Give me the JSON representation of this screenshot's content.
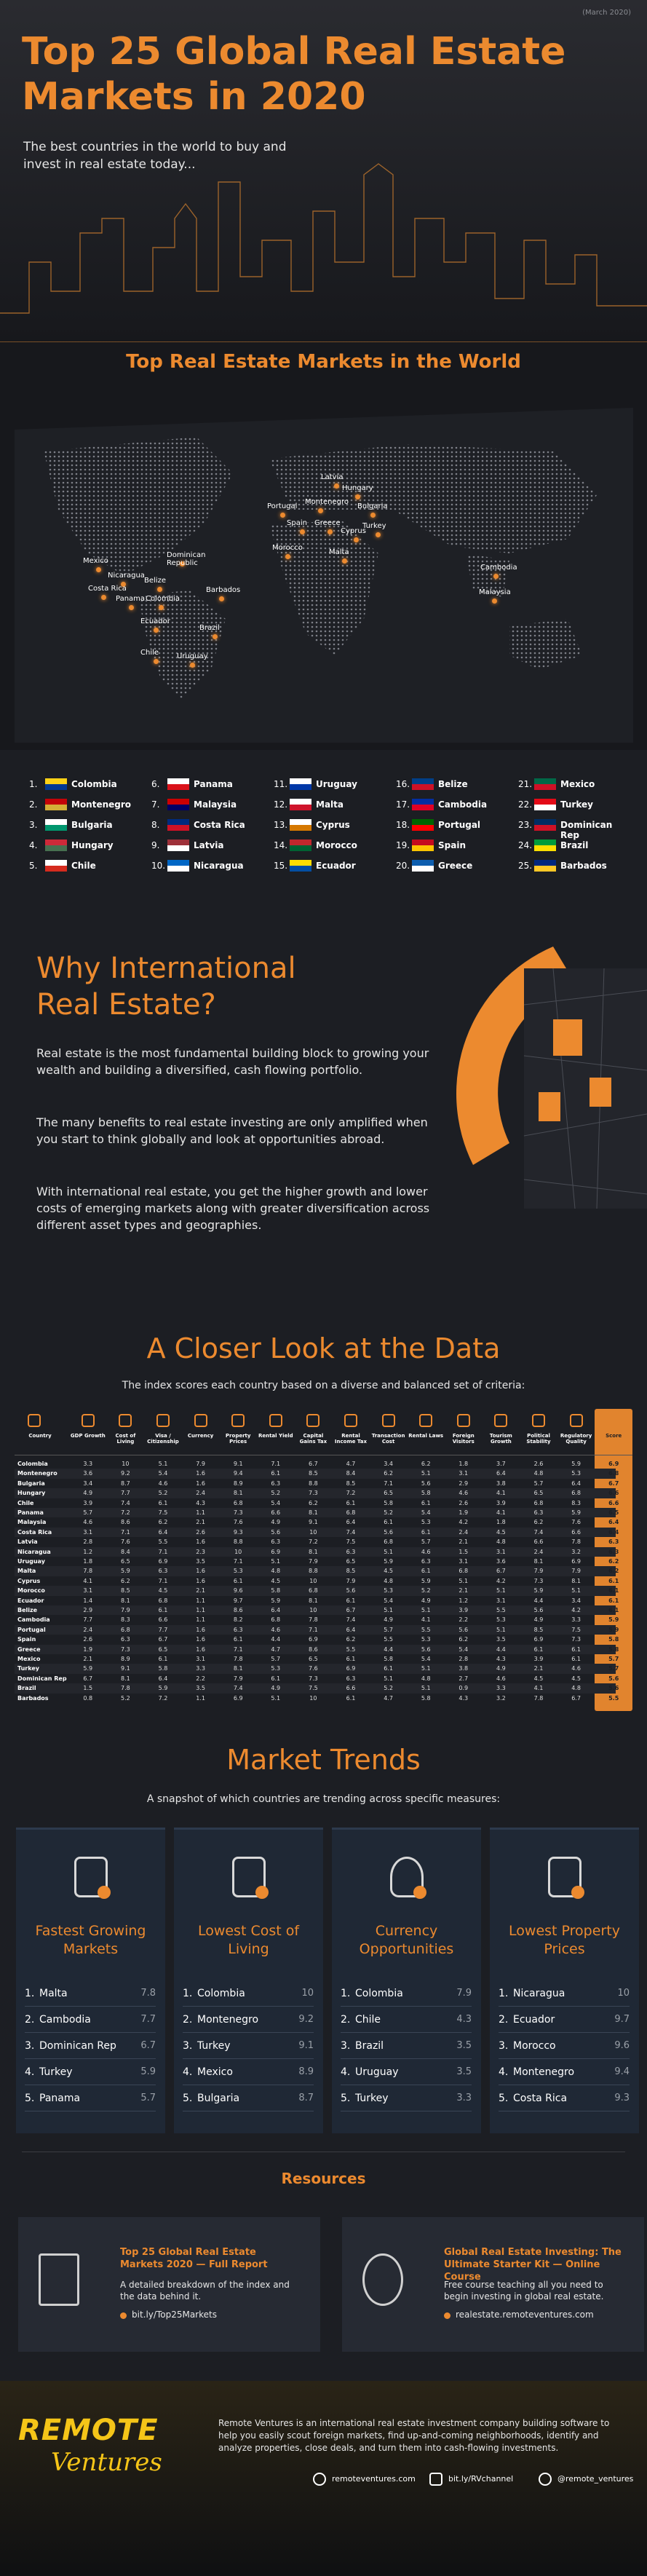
{
  "header": {
    "date": "(March 2020)",
    "title": "Top 25 Global Real Estate Markets in 2020",
    "subtitle": "The best countries in the world to buy and invest in real estate today..."
  },
  "map": {
    "title": "Top Real Estate Markets in the World",
    "labels": [
      "Latvia",
      "Hungary",
      "Portugal",
      "Montenegro",
      "Bulgaria",
      "Spain",
      "Greece",
      "Cyprus",
      "Turkey",
      "Morocco",
      "Malta",
      "Mexico",
      "Dominican Republic",
      "Nicaragua",
      "Belize",
      "Costa Rica",
      "Panama",
      "Colombia",
      "Barbados",
      "Ecuador",
      "Brazil",
      "Chile",
      "Uruguay",
      "Cambodia",
      "Malaysia"
    ]
  },
  "ranking": [
    {
      "rank": "1.",
      "country": "Colombia"
    },
    {
      "rank": "2.",
      "country": "Montenegro"
    },
    {
      "rank": "3.",
      "country": "Bulgaria"
    },
    {
      "rank": "4.",
      "country": "Hungary"
    },
    {
      "rank": "5.",
      "country": "Chile"
    },
    {
      "rank": "6.",
      "country": "Panama"
    },
    {
      "rank": "7.",
      "country": "Malaysia"
    },
    {
      "rank": "8.",
      "country": "Costa Rica"
    },
    {
      "rank": "9.",
      "country": "Latvia"
    },
    {
      "rank": "10.",
      "country": "Nicaragua"
    },
    {
      "rank": "11.",
      "country": "Uruguay"
    },
    {
      "rank": "12.",
      "country": "Malta"
    },
    {
      "rank": "13.",
      "country": "Cyprus"
    },
    {
      "rank": "14.",
      "country": "Morocco"
    },
    {
      "rank": "15.",
      "country": "Ecuador"
    },
    {
      "rank": "16.",
      "country": "Belize"
    },
    {
      "rank": "17.",
      "country": "Cambodia"
    },
    {
      "rank": "18.",
      "country": "Portugal"
    },
    {
      "rank": "19.",
      "country": "Spain"
    },
    {
      "rank": "20.",
      "country": "Greece"
    },
    {
      "rank": "21.",
      "country": "Mexico"
    },
    {
      "rank": "22.",
      "country": "Turkey"
    },
    {
      "rank": "23.",
      "country": "Dominican Rep"
    },
    {
      "rank": "24.",
      "country": "Brazil"
    },
    {
      "rank": "25.",
      "country": "Barbados"
    }
  ],
  "why": {
    "title": "Why International Real Estate?",
    "paragraphs": [
      "Real estate is the most fundamental building block to growing your wealth and building a diversified, cash flowing portfolio.",
      "The many benefits to real estate investing are only amplified when you start to think globally and look at opportunities abroad.",
      "With international real estate, you get the higher growth and lower costs of emerging markets along with greater diversification across different asset types and geographies."
    ]
  },
  "data_table": {
    "title": "A Closer Look at the Data",
    "subtitle": "The index scores each country based on a diverse and balanced set of criteria:",
    "columns": [
      "Country",
      "GDP Growth",
      "Cost of Living",
      "Visa / Citizenship",
      "Currency",
      "Property Prices",
      "Rental Yield",
      "Capital Gains Tax",
      "Rental Income Tax",
      "Transaction Cost",
      "Rental Laws",
      "Foreign Visitors",
      "Tourism Growth",
      "Political Stability",
      "Regulatory Quality",
      "Score"
    ],
    "rows": [
      {
        "country": "Colombia",
        "cells": [
          "3.3",
          "10",
          "5.1",
          "7.9",
          "9.1",
          "7.1",
          "6.7",
          "4.7",
          "3.4",
          "6.2",
          "1.8",
          "3.7",
          "2.6",
          "5.9",
          "6.9"
        ]
      },
      {
        "country": "Montenegro",
        "cells": [
          "3.6",
          "9.2",
          "5.4",
          "1.6",
          "9.4",
          "6.1",
          "8.5",
          "8.4",
          "6.2",
          "5.1",
          "3.1",
          "6.4",
          "4.8",
          "5.3",
          "6.8"
        ]
      },
      {
        "country": "Bulgaria",
        "cells": [
          "3.4",
          "8.7",
          "4.6",
          "1.6",
          "8.9",
          "6.3",
          "8.8",
          "8.5",
          "7.1",
          "5.6",
          "2.9",
          "3.8",
          "5.7",
          "6.4",
          "6.7"
        ]
      },
      {
        "country": "Hungary",
        "cells": [
          "4.9",
          "7.7",
          "5.2",
          "2.4",
          "8.1",
          "5.2",
          "7.3",
          "7.2",
          "6.5",
          "5.8",
          "4.6",
          "4.1",
          "6.5",
          "6.8",
          "6.6"
        ]
      },
      {
        "country": "Chile",
        "cells": [
          "3.9",
          "7.4",
          "6.1",
          "4.3",
          "6.8",
          "5.4",
          "6.2",
          "6.1",
          "5.8",
          "6.1",
          "2.6",
          "3.9",
          "6.8",
          "8.3",
          "6.6"
        ]
      },
      {
        "country": "Panama",
        "cells": [
          "5.7",
          "7.2",
          "7.5",
          "1.1",
          "7.3",
          "6.6",
          "8.1",
          "6.8",
          "5.2",
          "5.4",
          "1.9",
          "4.1",
          "6.3",
          "5.9",
          "6.5"
        ]
      },
      {
        "country": "Malaysia",
        "cells": [
          "4.6",
          "8.6",
          "6.2",
          "2.1",
          "7.6",
          "4.9",
          "9.1",
          "6.4",
          "6.1",
          "5.3",
          "4.2",
          "1.8",
          "6.2",
          "7.6",
          "6.4"
        ]
      },
      {
        "country": "Costa Rica",
        "cells": [
          "3.1",
          "7.1",
          "6.4",
          "2.6",
          "9.3",
          "5.6",
          "10",
          "7.4",
          "5.6",
          "6.1",
          "2.4",
          "4.5",
          "7.4",
          "6.6",
          "6.4"
        ]
      },
      {
        "country": "Latvia",
        "cells": [
          "2.8",
          "7.6",
          "5.5",
          "1.6",
          "8.8",
          "6.3",
          "7.2",
          "7.5",
          "6.8",
          "5.7",
          "2.1",
          "4.8",
          "6.6",
          "7.8",
          "6.3"
        ]
      },
      {
        "country": "Nicaragua",
        "cells": [
          "1.2",
          "8.4",
          "7.1",
          "2.3",
          "10",
          "6.9",
          "8.1",
          "6.3",
          "5.1",
          "4.6",
          "1.5",
          "3.1",
          "2.4",
          "3.2",
          "6.3"
        ]
      },
      {
        "country": "Uruguay",
        "cells": [
          "1.8",
          "6.5",
          "6.9",
          "3.5",
          "7.1",
          "5.1",
          "7.9",
          "6.5",
          "5.9",
          "6.3",
          "3.1",
          "3.6",
          "8.1",
          "6.9",
          "6.2"
        ]
      },
      {
        "country": "Malta",
        "cells": [
          "7.8",
          "5.9",
          "6.3",
          "1.6",
          "5.3",
          "4.8",
          "8.8",
          "8.5",
          "4.5",
          "6.1",
          "6.8",
          "6.7",
          "7.9",
          "7.9",
          "6.2"
        ]
      },
      {
        "country": "Cyprus",
        "cells": [
          "4.1",
          "6.2",
          "7.1",
          "1.6",
          "6.1",
          "4.5",
          "10",
          "7.9",
          "4.8",
          "5.9",
          "5.1",
          "4.2",
          "7.3",
          "8.1",
          "6.1"
        ]
      },
      {
        "country": "Morocco",
        "cells": [
          "3.1",
          "8.5",
          "4.5",
          "2.1",
          "9.6",
          "5.8",
          "6.8",
          "5.6",
          "5.3",
          "5.2",
          "2.1",
          "5.1",
          "5.9",
          "5.1",
          "6.1"
        ]
      },
      {
        "country": "Ecuador",
        "cells": [
          "1.4",
          "8.1",
          "6.8",
          "1.1",
          "9.7",
          "5.9",
          "8.1",
          "6.1",
          "5.4",
          "4.9",
          "1.2",
          "3.1",
          "4.4",
          "3.4",
          "6.1"
        ]
      },
      {
        "country": "Belize",
        "cells": [
          "2.9",
          "7.9",
          "6.1",
          "1.1",
          "8.6",
          "6.4",
          "10",
          "6.7",
          "5.1",
          "5.1",
          "3.9",
          "5.5",
          "5.6",
          "4.2",
          "6.1"
        ]
      },
      {
        "country": "Cambodia",
        "cells": [
          "7.7",
          "8.3",
          "6.6",
          "1.1",
          "8.2",
          "6.8",
          "7.8",
          "7.4",
          "4.9",
          "4.1",
          "2.2",
          "5.3",
          "4.9",
          "3.3",
          "5.9"
        ]
      },
      {
        "country": "Portugal",
        "cells": [
          "2.4",
          "6.8",
          "7.7",
          "1.6",
          "6.3",
          "4.6",
          "7.1",
          "6.4",
          "5.7",
          "5.5",
          "5.6",
          "5.1",
          "8.5",
          "7.5",
          "5.9"
        ]
      },
      {
        "country": "Spain",
        "cells": [
          "2.6",
          "6.3",
          "6.7",
          "1.6",
          "6.1",
          "4.4",
          "6.9",
          "6.2",
          "5.5",
          "5.3",
          "6.2",
          "3.5",
          "6.9",
          "7.3",
          "5.8"
        ]
      },
      {
        "country": "Greece",
        "cells": [
          "1.9",
          "7.3",
          "6.5",
          "1.6",
          "7.1",
          "4.7",
          "8.6",
          "5.5",
          "4.4",
          "5.6",
          "5.4",
          "4.4",
          "6.1",
          "6.1",
          "5.8"
        ]
      },
      {
        "country": "Mexico",
        "cells": [
          "2.1",
          "8.9",
          "6.1",
          "3.1",
          "7.8",
          "5.7",
          "6.5",
          "6.1",
          "5.8",
          "5.4",
          "2.8",
          "4.3",
          "3.9",
          "6.1",
          "5.7"
        ]
      },
      {
        "country": "Turkey",
        "cells": [
          "5.9",
          "9.1",
          "5.8",
          "3.3",
          "8.1",
          "5.3",
          "7.6",
          "6.9",
          "6.1",
          "5.1",
          "3.8",
          "4.9",
          "2.1",
          "4.6",
          "5.7"
        ]
      },
      {
        "country": "Dominican Rep",
        "cells": [
          "6.7",
          "8.1",
          "6.4",
          "2.2",
          "7.9",
          "6.1",
          "7.3",
          "6.3",
          "5.1",
          "4.8",
          "2.7",
          "4.6",
          "4.5",
          "4.5",
          "5.6"
        ]
      },
      {
        "country": "Brazil",
        "cells": [
          "1.5",
          "7.8",
          "5.9",
          "3.5",
          "7.4",
          "4.9",
          "7.5",
          "6.6",
          "5.2",
          "5.1",
          "0.9",
          "3.3",
          "4.1",
          "4.8",
          "5.6"
        ]
      },
      {
        "country": "Barbados",
        "cells": [
          "0.8",
          "5.2",
          "7.2",
          "1.1",
          "6.9",
          "5.1",
          "10",
          "6.1",
          "4.7",
          "5.8",
          "4.3",
          "3.2",
          "7.8",
          "6.7",
          "5.5"
        ]
      }
    ]
  },
  "trends": {
    "title": "Market Trends",
    "subtitle": "A snapshot of which countries are trending across specific measures:",
    "cards": [
      {
        "title": "Fastest Growing Markets",
        "items": [
          {
            "rank": "1.",
            "name": "Malta",
            "value": 7.8
          },
          {
            "rank": "2.",
            "name": "Cambodia",
            "value": 7.7
          },
          {
            "rank": "3.",
            "name": "Dominican Rep",
            "value": 6.7
          },
          {
            "rank": "4.",
            "name": "Turkey",
            "value": 5.9
          },
          {
            "rank": "5.",
            "name": "Panama",
            "value": 5.7
          }
        ]
      },
      {
        "title": "Lowest Cost of Living",
        "items": [
          {
            "rank": "1.",
            "name": "Colombia",
            "value": 10
          },
          {
            "rank": "2.",
            "name": "Montenegro",
            "value": 9.2
          },
          {
            "rank": "3.",
            "name": "Turkey",
            "value": 9.1
          },
          {
            "rank": "4.",
            "name": "Mexico",
            "value": 8.9
          },
          {
            "rank": "5.",
            "name": "Bulgaria",
            "value": 8.7
          }
        ]
      },
      {
        "title": "Currency Opportunities",
        "items": [
          {
            "rank": "1.",
            "name": "Colombia",
            "value": 7.9
          },
          {
            "rank": "2.",
            "name": "Chile",
            "value": 4.3
          },
          {
            "rank": "3.",
            "name": "Brazil",
            "value": 3.5
          },
          {
            "rank": "4.",
            "name": "Uruguay",
            "value": 3.5
          },
          {
            "rank": "5.",
            "name": "Turkey",
            "value": 3.3
          }
        ]
      },
      {
        "title": "Lowest Property Prices",
        "items": [
          {
            "rank": "1.",
            "name": "Nicaragua",
            "value": 10
          },
          {
            "rank": "2.",
            "name": "Ecuador",
            "value": 9.7
          },
          {
            "rank": "3.",
            "name": "Morocco",
            "value": 9.6
          },
          {
            "rank": "4.",
            "name": "Montenegro",
            "value": 9.4
          },
          {
            "rank": "5.",
            "name": "Costa Rica",
            "value": 9.3
          }
        ]
      }
    ]
  },
  "resources": {
    "title": "Resources",
    "items": [
      {
        "title": "Top 25 Global Real Estate Markets 2020 — Full Report",
        "description": "A detailed breakdown of the index and the data behind it.",
        "link": "bit.ly/Top25Markets"
      },
      {
        "title": "Global Real Estate Investing: The Ultimate Starter Kit — Online Course",
        "description": "Free course teaching all you need to begin investing in global real estate.",
        "link": "realestate.remoteventures.com"
      }
    ]
  },
  "footer": {
    "logo_top": "REMOTE",
    "logo_bottom": "Ventures",
    "description": "Remote Ventures is an international real estate investment company building software to help you easily scout foreign markets, find up-and-coming neighborhoods, identify and analyze properties, close deals, and turn them into cash-flowing investments.",
    "links": [
      "remoteventures.com",
      "bit.ly/RVchannel",
      "@remote_ventures"
    ]
  }
}
